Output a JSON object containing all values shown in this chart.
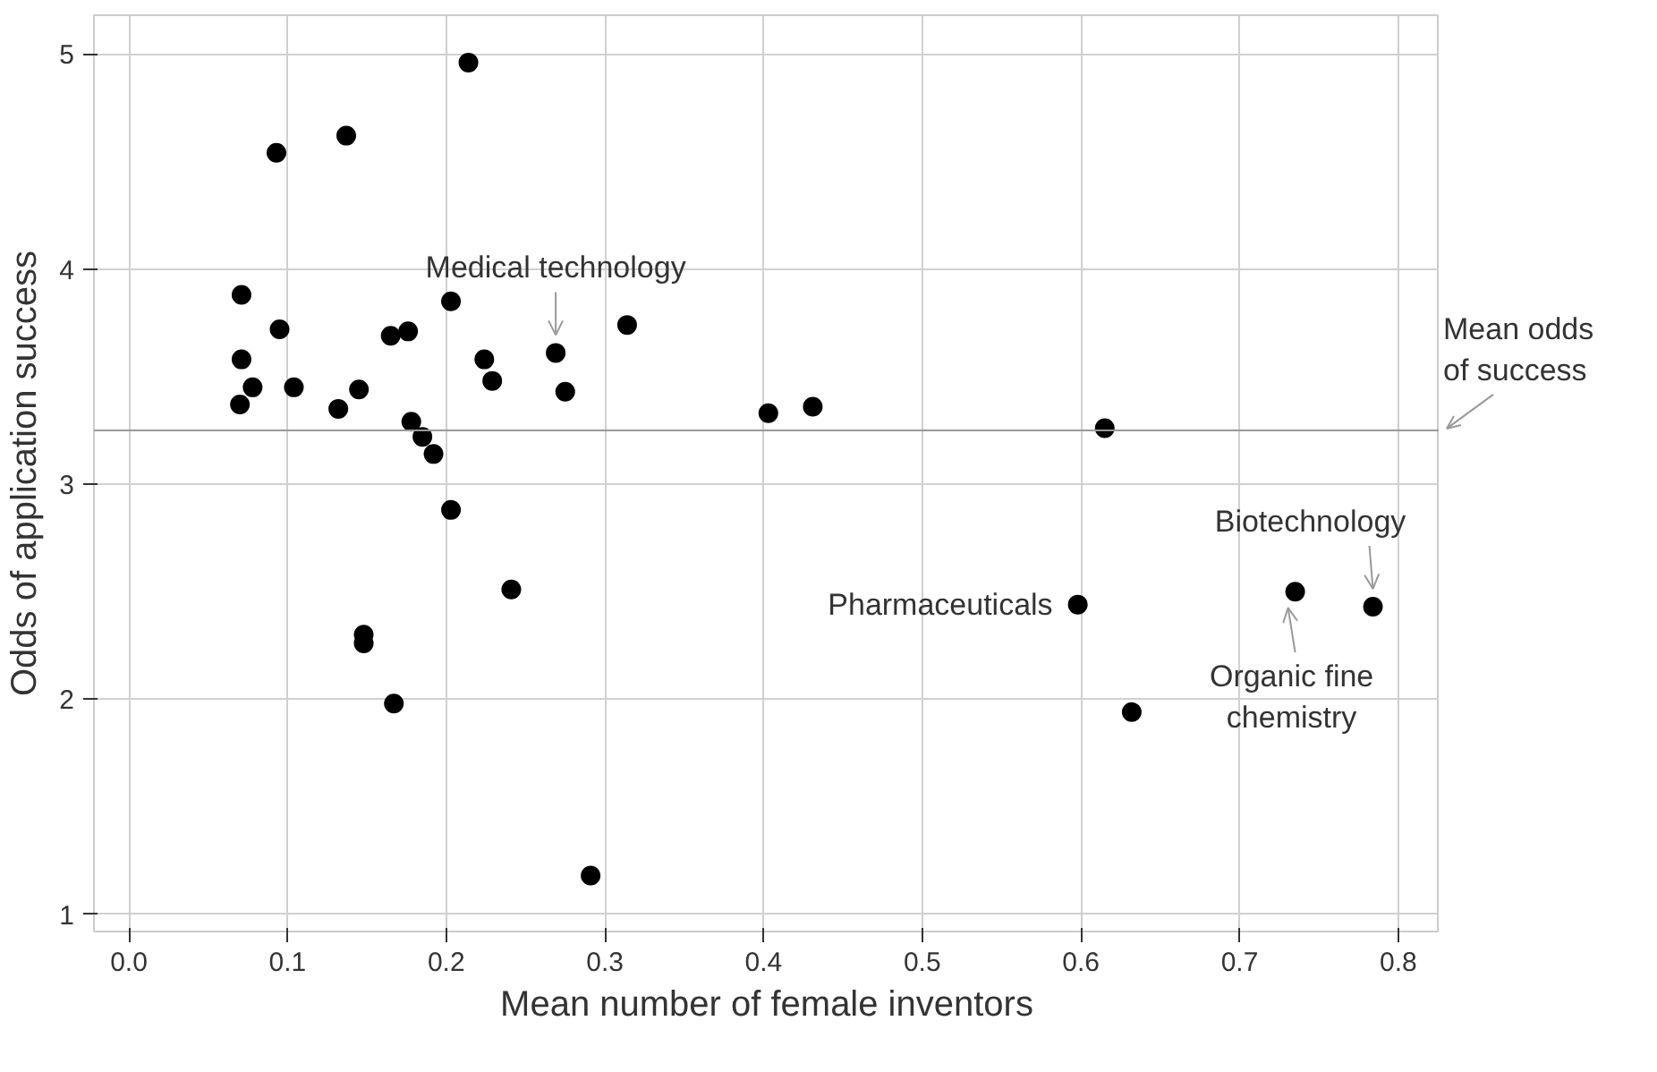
{
  "chart_data": {
    "type": "scatter",
    "xlabel": "Mean number of female inventors",
    "ylabel": "Odds of application success",
    "x": [
      0.071,
      0.071,
      0.07,
      0.078,
      0.093,
      0.095,
      0.104,
      0.132,
      0.137,
      0.145,
      0.148,
      0.148,
      0.165,
      0.167,
      0.176,
      0.178,
      0.185,
      0.192,
      0.203,
      0.203,
      0.214,
      0.224,
      0.229,
      0.241,
      0.269,
      0.275,
      0.291,
      0.314,
      0.403,
      0.431,
      0.598,
      0.615,
      0.632,
      0.735,
      0.784
    ],
    "series": [
      {
        "color": "#000000",
        "values": [
          3.88,
          3.58,
          3.37,
          3.45,
          4.54,
          3.72,
          3.45,
          3.35,
          4.62,
          3.44,
          2.3,
          2.26,
          3.69,
          1.98,
          3.71,
          3.29,
          3.22,
          3.14,
          3.85,
          2.88,
          4.96,
          3.58,
          3.48,
          2.51,
          3.61,
          3.43,
          1.18,
          3.74,
          3.33,
          3.36,
          2.44,
          3.26,
          1.94,
          2.5,
          2.43
        ]
      }
    ],
    "xlim": [
      -0.022,
      0.826
    ],
    "ylim": [
      0.92,
      5.18
    ],
    "xticks": [
      {
        "value": 0,
        "label": "0.0"
      },
      {
        "value": 0.1,
        "label": "0.1"
      },
      {
        "value": 0.2,
        "label": "0.2"
      },
      {
        "value": 0.3,
        "label": "0.3"
      },
      {
        "value": 0.4,
        "label": "0.4"
      },
      {
        "value": 0.5,
        "label": "0.5"
      },
      {
        "value": 0.6,
        "label": "0.6"
      },
      {
        "value": 0.7,
        "label": "0.7"
      },
      {
        "value": 0.8,
        "label": "0.8"
      }
    ],
    "yticks": [
      1,
      2,
      3,
      4,
      5
    ],
    "grid": true,
    "marker": "circle",
    "ref_lines": [
      {
        "axis": "y",
        "value": 3.25,
        "label": "Mean odds\nof success",
        "color": "#999999"
      }
    ],
    "annotations": [
      {
        "text": "Medical technology",
        "x": 0.269,
        "y": 3.61
      },
      {
        "text": "Pharmaceuticals",
        "x": 0.598,
        "y": 2.44
      },
      {
        "text": "Biotechnology",
        "x": 0.784,
        "y": 2.43
      },
      {
        "text": "Organic fine\nchemistry",
        "x": 0.735,
        "y": 2.5
      }
    ]
  }
}
